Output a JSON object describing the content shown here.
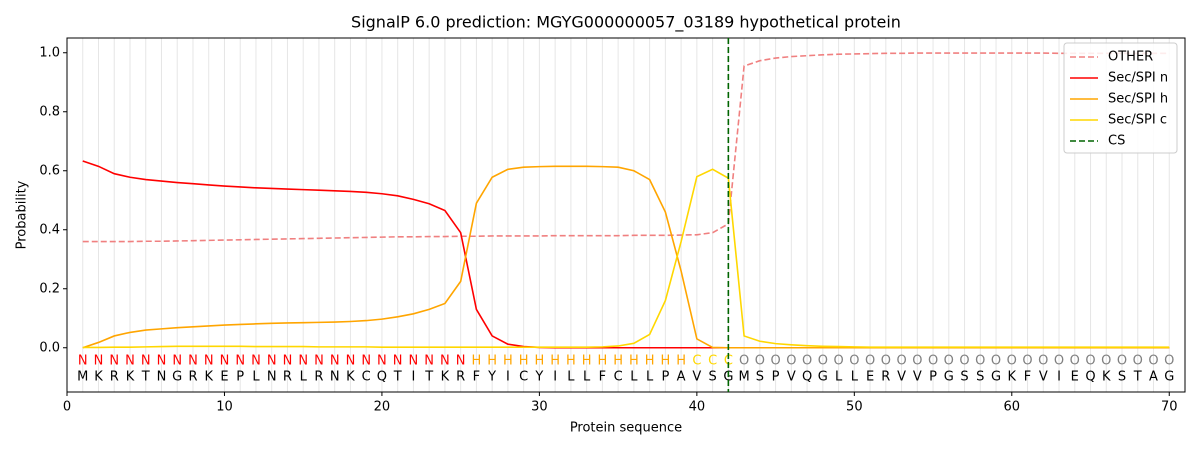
{
  "chart_data": {
    "type": "line",
    "title": "SignalP 6.0 prediction: MGYG000000057_03189 hypothetical protein",
    "xlabel": "Protein sequence",
    "ylabel": "Probability",
    "x": [
      1,
      2,
      3,
      4,
      5,
      6,
      7,
      8,
      9,
      10,
      11,
      12,
      13,
      14,
      15,
      16,
      17,
      18,
      19,
      20,
      21,
      22,
      23,
      24,
      25,
      26,
      27,
      28,
      29,
      30,
      31,
      32,
      33,
      34,
      35,
      36,
      37,
      38,
      39,
      40,
      41,
      42,
      43,
      44,
      45,
      46,
      47,
      48,
      49,
      50,
      51,
      52,
      53,
      54,
      55,
      56,
      57,
      58,
      59,
      60,
      61,
      62,
      63,
      64,
      65,
      66,
      67,
      68,
      69,
      70
    ],
    "sequence": [
      "M",
      "K",
      "R",
      "K",
      "T",
      "N",
      "G",
      "R",
      "K",
      "E",
      "P",
      "L",
      "N",
      "R",
      "L",
      "R",
      "N",
      "K",
      "C",
      "Q",
      "T",
      "I",
      "T",
      "K",
      "R",
      "F",
      "Y",
      "I",
      "C",
      "Y",
      "I",
      "L",
      "L",
      "F",
      "C",
      "L",
      "L",
      "P",
      "A",
      "V",
      "S",
      "G",
      "M",
      "S",
      "P",
      "V",
      "Q",
      "G",
      "L",
      "L",
      "E",
      "R",
      "V",
      "V",
      "P",
      "G",
      "S",
      "S",
      "G",
      "K",
      "F",
      "V",
      "I",
      "E",
      "Q",
      "K",
      "S",
      "T",
      "A",
      "G"
    ],
    "regions": [
      "N",
      "N",
      "N",
      "N",
      "N",
      "N",
      "N",
      "N",
      "N",
      "N",
      "N",
      "N",
      "N",
      "N",
      "N",
      "N",
      "N",
      "N",
      "N",
      "N",
      "N",
      "N",
      "N",
      "N",
      "N",
      "H",
      "H",
      "H",
      "H",
      "H",
      "H",
      "H",
      "H",
      "H",
      "H",
      "H",
      "H",
      "H",
      "H",
      "C",
      "C",
      "C",
      "O",
      "O",
      "O",
      "O",
      "O",
      "O",
      "O",
      "O",
      "O",
      "O",
      "O",
      "O",
      "O",
      "O",
      "O",
      "O",
      "O",
      "O",
      "O",
      "O",
      "O",
      "O",
      "O",
      "O",
      "O",
      "O",
      "O",
      "O"
    ],
    "region_colors": {
      "N": "#ff0000",
      "H": "#ffa500",
      "C": "#ffd700",
      "O": "#808080"
    },
    "series": [
      {
        "name": "OTHER",
        "color": "#f08080",
        "dashed": true,
        "values": [
          0.36,
          0.36,
          0.36,
          0.36,
          0.361,
          0.361,
          0.362,
          0.363,
          0.364,
          0.365,
          0.366,
          0.367,
          0.368,
          0.369,
          0.37,
          0.371,
          0.372,
          0.373,
          0.374,
          0.375,
          0.376,
          0.376,
          0.377,
          0.377,
          0.378,
          0.378,
          0.379,
          0.379,
          0.379,
          0.379,
          0.38,
          0.38,
          0.38,
          0.38,
          0.38,
          0.381,
          0.381,
          0.381,
          0.382,
          0.383,
          0.39,
          0.42,
          0.955,
          0.973,
          0.982,
          0.987,
          0.99,
          0.993,
          0.995,
          0.996,
          0.997,
          0.998,
          0.998,
          0.999,
          0.999,
          0.999,
          0.999,
          0.999,
          0.999,
          0.999,
          0.999,
          0.999,
          0.998,
          0.998,
          0.998,
          0.998,
          0.998,
          0.998,
          0.998,
          0.998
        ]
      },
      {
        "name": "Sec/SPI n",
        "color": "#ff0000",
        "dashed": false,
        "values": [
          0.633,
          0.615,
          0.59,
          0.578,
          0.57,
          0.565,
          0.56,
          0.556,
          0.552,
          0.548,
          0.545,
          0.542,
          0.54,
          0.538,
          0.536,
          0.534,
          0.532,
          0.53,
          0.527,
          0.522,
          0.515,
          0.503,
          0.488,
          0.465,
          0.39,
          0.13,
          0.04,
          0.012,
          0.004,
          0.001,
          0,
          0,
          0,
          0,
          0,
          0,
          0,
          0,
          0,
          0,
          0,
          0,
          0,
          0,
          0,
          0,
          0,
          0,
          0,
          0,
          0,
          0,
          0,
          0,
          0,
          0,
          0,
          0,
          0,
          0,
          0,
          0,
          0,
          0,
          0,
          0,
          0,
          0,
          0,
          0
        ]
      },
      {
        "name": "Sec/SPI h",
        "color": "#ffa500",
        "dashed": false,
        "values": [
          0,
          0.018,
          0.04,
          0.052,
          0.06,
          0.064,
          0.068,
          0.071,
          0.074,
          0.077,
          0.079,
          0.081,
          0.083,
          0.084,
          0.085,
          0.086,
          0.087,
          0.089,
          0.092,
          0.097,
          0.105,
          0.115,
          0.13,
          0.15,
          0.225,
          0.49,
          0.578,
          0.605,
          0.612,
          0.614,
          0.615,
          0.615,
          0.615,
          0.614,
          0.612,
          0.6,
          0.57,
          0.46,
          0.26,
          0.03,
          0.001,
          0,
          0,
          0,
          0,
          0,
          0,
          0,
          0,
          0,
          0,
          0,
          0,
          0,
          0,
          0,
          0,
          0,
          0,
          0,
          0,
          0,
          0,
          0,
          0,
          0,
          0,
          0,
          0,
          0
        ]
      },
      {
        "name": "Sec/SPI c",
        "color": "#ffd700",
        "dashed": false,
        "values": [
          0.001,
          0.001,
          0.002,
          0.002,
          0.003,
          0.004,
          0.005,
          0.005,
          0.005,
          0.005,
          0.005,
          0.004,
          0.004,
          0.004,
          0.004,
          0.003,
          0.003,
          0.003,
          0.003,
          0.002,
          0.002,
          0.002,
          0.002,
          0.002,
          0.002,
          0.002,
          0.002,
          0.002,
          0.002,
          0.002,
          0.002,
          0.002,
          0.002,
          0.003,
          0.006,
          0.015,
          0.045,
          0.16,
          0.36,
          0.58,
          0.605,
          0.575,
          0.04,
          0.022,
          0.014,
          0.01,
          0.007,
          0.005,
          0.004,
          0.003,
          0.002,
          0.002,
          0.002,
          0.002,
          0.002,
          0.002,
          0.002,
          0.002,
          0.002,
          0.002,
          0.002,
          0.002,
          0.002,
          0.002,
          0.002,
          0.002,
          0.002,
          0.002,
          0.002,
          0.002
        ]
      }
    ],
    "cs": {
      "name": "CS",
      "x": 42,
      "color": "#006400"
    },
    "xlim": [
      0,
      71
    ],
    "ylim": [
      -0.15,
      1.05
    ],
    "xticks": [
      0,
      10,
      20,
      30,
      40,
      50,
      60,
      70
    ],
    "yticks": [
      {
        "value": 0,
        "label": "0.0"
      },
      0.2,
      0.4,
      0.6,
      0.8,
      {
        "value": 1,
        "label": "1.0"
      }
    ],
    "legend": "upper right"
  }
}
